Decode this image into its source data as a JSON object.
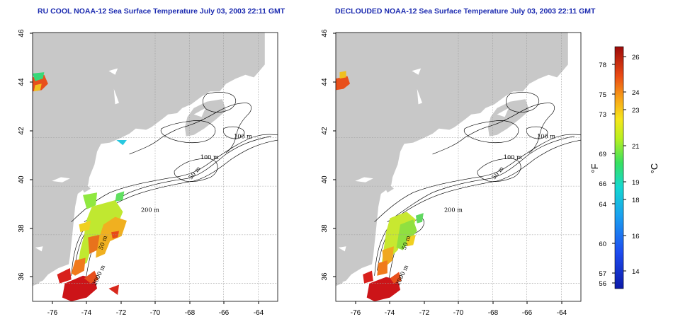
{
  "panels": [
    {
      "title": "RU COOL NOAA-12 Sea Surface Temperature July 03, 2003 22:11 GMT",
      "cloud_masked": false
    },
    {
      "title": "DECLOUDED NOAA-12 Sea Surface Temperature July 03, 2003 22:11 GMT",
      "cloud_masked": true
    }
  ],
  "axes": {
    "x_ticks": [
      "-76",
      "-74",
      "-72",
      "-70",
      "-68",
      "-66",
      "-64"
    ],
    "y_ticks": [
      "36",
      "38",
      "40",
      "42",
      "44",
      "46"
    ]
  },
  "contour_labels": {
    "c100a": "100 m",
    "c100b": "100 m",
    "c50": "50 m",
    "c200": "200 m",
    "c50s": "50 m",
    "c2000": "2000 m"
  },
  "colorbar": {
    "fahrenheit_unit": "°F",
    "celsius_unit": "°C",
    "fahrenheit_ticks": [
      "78",
      "75",
      "73",
      "69",
      "66",
      "64",
      "60",
      "57",
      "56"
    ],
    "celsius_ticks": [
      "26",
      "24",
      "23",
      "21",
      "19",
      "18",
      "16",
      "14"
    ]
  },
  "colors": {
    "land": "#c8c8c8",
    "title": "#1c2bb0"
  }
}
